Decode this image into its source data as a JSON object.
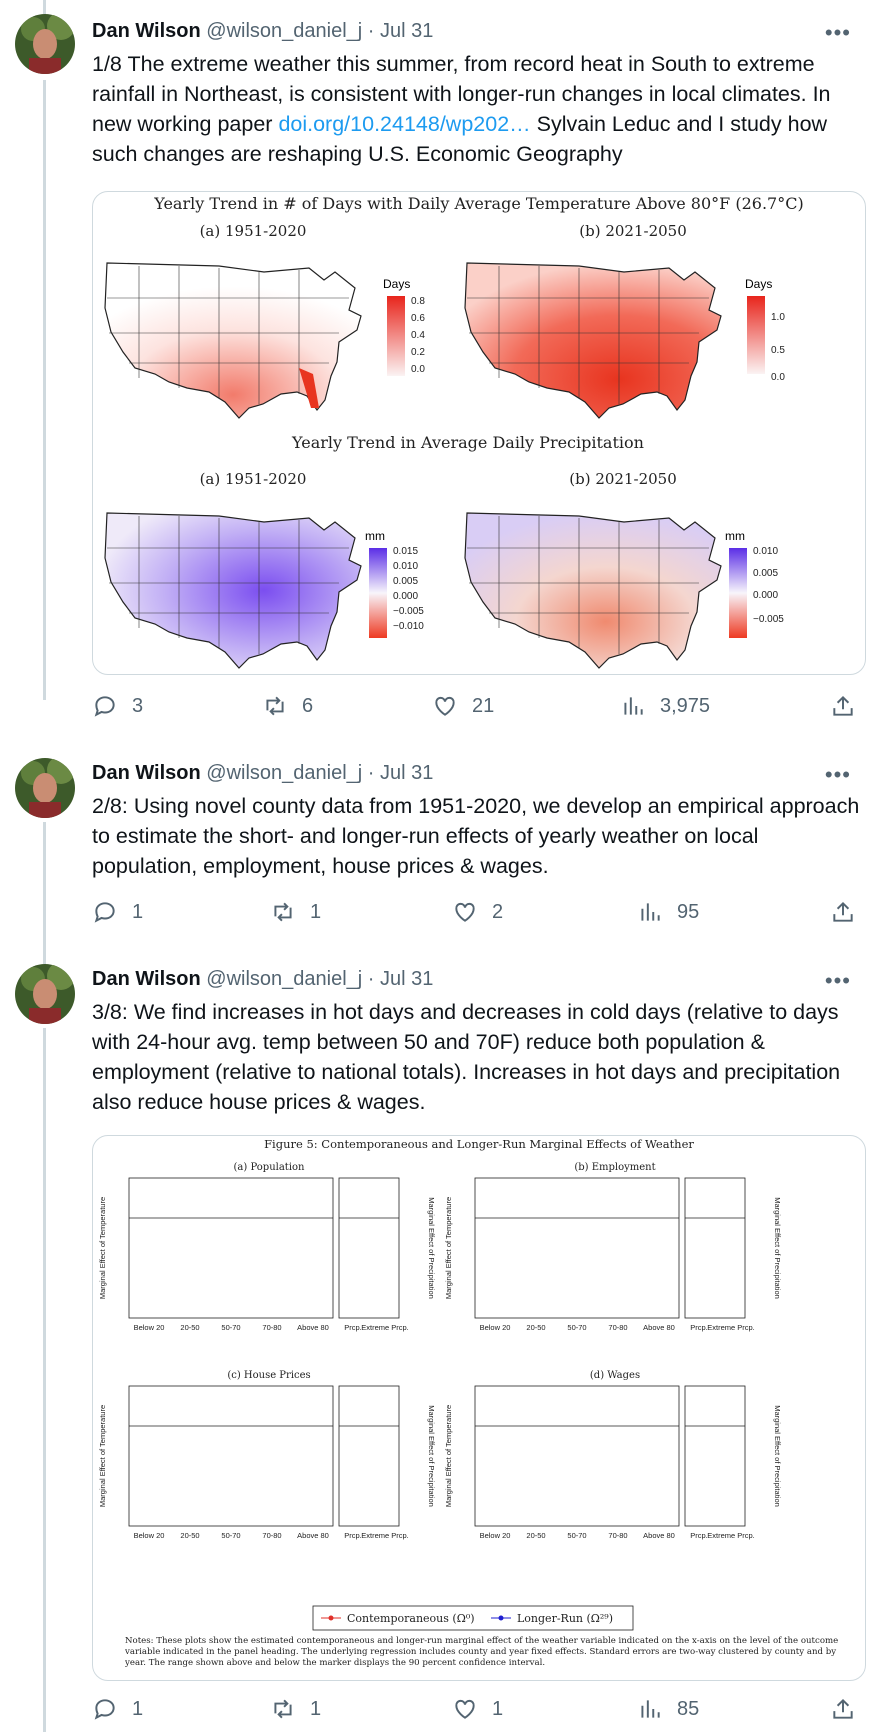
{
  "tweets": [
    {
      "author": "Dan Wilson",
      "handle": "@wilson_daniel_j",
      "date": "Jul 31",
      "text_before": "1/8 The extreme weather this summer, from record heat in South to extreme rainfall in Northeast, is consistent with longer-run changes in local climates. In new working paper ",
      "link": "doi.org/10.24148/wp202…",
      "text_after": " Sylvain Leduc and I study how such changes are reshaping U.S. Economic Geography",
      "replies": "3",
      "reposts": "6",
      "likes": "21",
      "views": "3,975"
    },
    {
      "author": "Dan Wilson",
      "handle": "@wilson_daniel_j",
      "date": "Jul 31",
      "text": "2/8: Using novel county data from 1951-2020, we develop an empirical approach to estimate the short- and longer-run effects of yearly weather on local population, employment, house prices & wages.",
      "replies": "1",
      "reposts": "1",
      "likes": "2",
      "views": "95"
    },
    {
      "author": "Dan Wilson",
      "handle": "@wilson_daniel_j",
      "date": "Jul 31",
      "text": "3/8: We find increases in hot days and decreases in cold days (relative to days with 24-hour avg. temp between 50 and 70F) reduce both population & employment (relative to national totals). Increases in hot days and precipitation also reduce house prices & wages.",
      "replies": "1",
      "reposts": "1",
      "likes": "1",
      "views": "85"
    }
  ],
  "maps_figure": {
    "title1": "Yearly Trend in # of Days with Daily Average Temperature Above 80°F (26.7°C)",
    "title2": "Yearly Trend in Average Daily Precipitation",
    "panel_a": "(a) 1951-2020",
    "panel_b": "(b) 2021-2050",
    "legend_days": "Days",
    "legend_mm": "mm",
    "days_ticks_a": [
      "0.8",
      "0.6",
      "0.4",
      "0.2",
      "0.0"
    ],
    "days_ticks_b": [
      "1.0",
      "0.5",
      "0.0"
    ],
    "mm_ticks_a": [
      "0.015",
      "0.010",
      "0.005",
      "0.000",
      "−0.005",
      "−0.010"
    ],
    "mm_ticks_b": [
      "0.010",
      "0.005",
      "0.000",
      "−0.005"
    ]
  },
  "effects_figure": {
    "title": "Figure 5: Contemporaneous and Longer-Run Marginal Effects of Weather",
    "panels": [
      "(a) Population",
      "(b) Employment",
      "(c) House Prices",
      "(d) Wages"
    ],
    "x_categories": [
      "Below 20",
      "20-50",
      "50-70",
      "70-80",
      "Above 80"
    ],
    "precip_categories": [
      "Prcp.",
      "Extreme Prcp."
    ],
    "ylabel_left": "Marginal Effect of Temperature",
    "ylabel_right": "Marginal Effect of Precipitation",
    "legend_contemp": "Contemporaneous (Ω⁰)",
    "legend_longrun": "Longer-Run (Ω²⁹)",
    "notes": "Notes: These plots show the estimated contemporaneous and longer-run marginal effect of the weather variable indicated on the x-axis on the level of the outcome variable indicated in the panel heading. The underlying regression includes county and year fixed effects. Standard errors are two-way clustered by county and by year. The range shown above and below the marker displays the 90 percent confidence interval."
  },
  "colors": {
    "red": "#e0302a",
    "blue": "#1f1fd0",
    "link": "#1d9bf0",
    "muted": "#536471"
  }
}
